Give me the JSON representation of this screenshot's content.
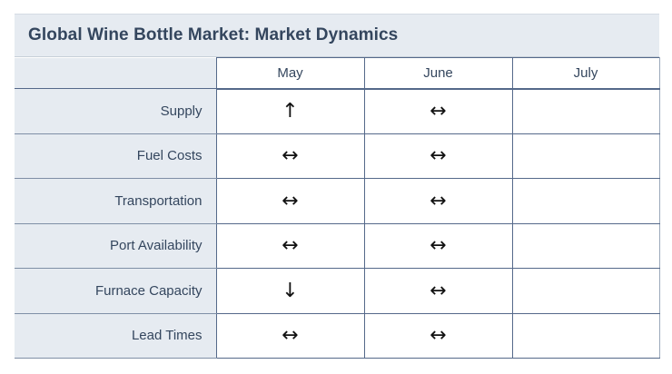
{
  "title": "Global Wine Bottle Market: Market Dynamics",
  "columns": [
    "May",
    "June",
    "July"
  ],
  "rows": [
    {
      "label": "Supply",
      "values": [
        "↑",
        "↔",
        ""
      ]
    },
    {
      "label": "Fuel Costs",
      "values": [
        "↔",
        "↔",
        ""
      ]
    },
    {
      "label": "Transportation",
      "values": [
        "↔",
        "↔",
        ""
      ]
    },
    {
      "label": "Port Availability",
      "values": [
        "↔",
        "↔",
        ""
      ]
    },
    {
      "label": "Furnace Capacity",
      "values": [
        "↓",
        "↔",
        ""
      ]
    },
    {
      "label": "Lead Times",
      "values": [
        "↔",
        "↔",
        ""
      ]
    }
  ],
  "chart_data": {
    "type": "table",
    "title": "Global Wine Bottle Market: Market Dynamics",
    "columns": [
      "May",
      "June",
      "July"
    ],
    "rows": [
      "Supply",
      "Fuel Costs",
      "Transportation",
      "Port Availability",
      "Furnace Capacity",
      "Lead Times"
    ],
    "cells": [
      [
        "up",
        "flat",
        ""
      ],
      [
        "flat",
        "flat",
        ""
      ],
      [
        "flat",
        "flat",
        ""
      ],
      [
        "flat",
        "flat",
        ""
      ],
      [
        "down",
        "flat",
        ""
      ],
      [
        "flat",
        "flat",
        ""
      ]
    ]
  }
}
